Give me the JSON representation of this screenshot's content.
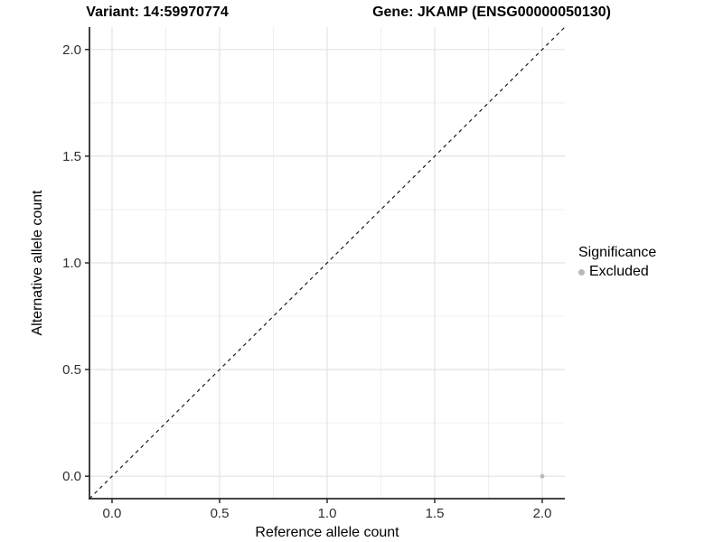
{
  "header": {
    "title_left": "Variant: 14:59970774",
    "title_right": "Gene: JKAMP (ENSG00000050130)"
  },
  "chart_data": {
    "type": "scatter",
    "xlabel": "Reference allele count",
    "ylabel": "Alternative allele count",
    "xlim": [
      -0.105,
      2.105
    ],
    "ylim": [
      -0.105,
      2.105
    ],
    "x_ticks": {
      "values": [
        0,
        0.5,
        1,
        1.5,
        2
      ],
      "labels": [
        "0.0",
        "0.5",
        "1.0",
        "1.5",
        "2.0"
      ]
    },
    "y_ticks": {
      "values": [
        0,
        0.5,
        1,
        1.5,
        2
      ],
      "labels": [
        "0.0",
        "0.5",
        "1.0",
        "1.5",
        "2.0"
      ]
    },
    "x_minor": [
      0.25,
      0.75,
      1.25,
      1.75
    ],
    "y_minor": [
      0.25,
      0.75,
      1.25,
      1.75
    ],
    "grid": true,
    "legend": {
      "title": "Significance",
      "position": "right"
    },
    "reference_line": {
      "slope": 1,
      "intercept": 0,
      "style": "dashed",
      "color": "#1a1a1a"
    },
    "series": [
      {
        "name": "Excluded",
        "color": "#b8b8b8",
        "points": [
          {
            "x": 2.0,
            "y": 0.0
          }
        ]
      }
    ],
    "colors": {
      "background": "#ffffff",
      "grid_major": "#e4e4e4",
      "grid_minor": "#efefef",
      "axis": "#2a2a2a",
      "tick_label": "#303030"
    }
  }
}
